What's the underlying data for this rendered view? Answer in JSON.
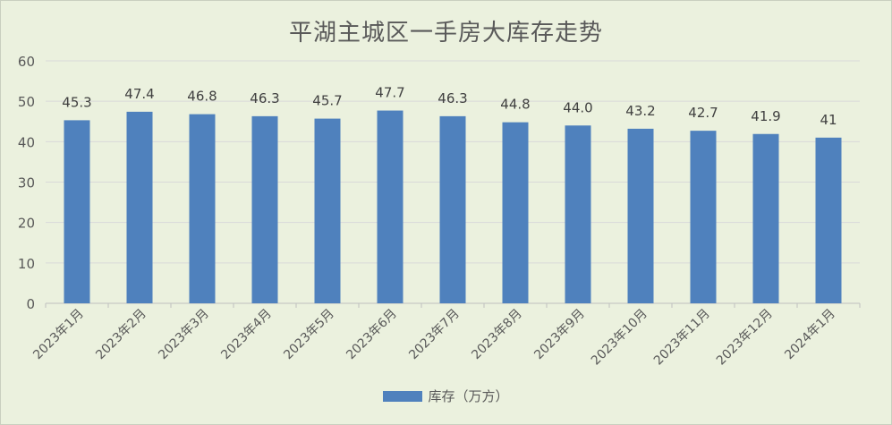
{
  "chart_data": {
    "type": "bar",
    "title": "平湖主城区一手房大库存走势",
    "categories": [
      "2023年1月",
      "2023年2月",
      "2023年3月",
      "2023年4月",
      "2023年5月",
      "2023年6月",
      "2023年7月",
      "2023年8月",
      "2023年9月",
      "2023年10月",
      "2023年11月",
      "2023年12月",
      "2024年1月"
    ],
    "series": [
      {
        "name": "库存（万方）",
        "values": [
          45.3,
          47.4,
          46.8,
          46.3,
          45.7,
          47.7,
          46.3,
          44.8,
          44.0,
          43.2,
          42.7,
          41.9,
          41
        ],
        "labels": [
          "45.3",
          "47.4",
          "46.8",
          "46.3",
          "45.7",
          "47.7",
          "46.3",
          "44.8",
          "44.0",
          "43.2",
          "42.7",
          "41.9",
          "41"
        ]
      }
    ],
    "ylim": [
      0,
      60
    ],
    "yticks": [
      0,
      10,
      20,
      30,
      40,
      50,
      60
    ],
    "grid": true,
    "legend": "bottom",
    "colors": {
      "bar": "#4f81bd",
      "grid": "#d9d9d9",
      "axis": "#bfbfbf",
      "text": "#595959",
      "background": "#ebf1de"
    }
  }
}
